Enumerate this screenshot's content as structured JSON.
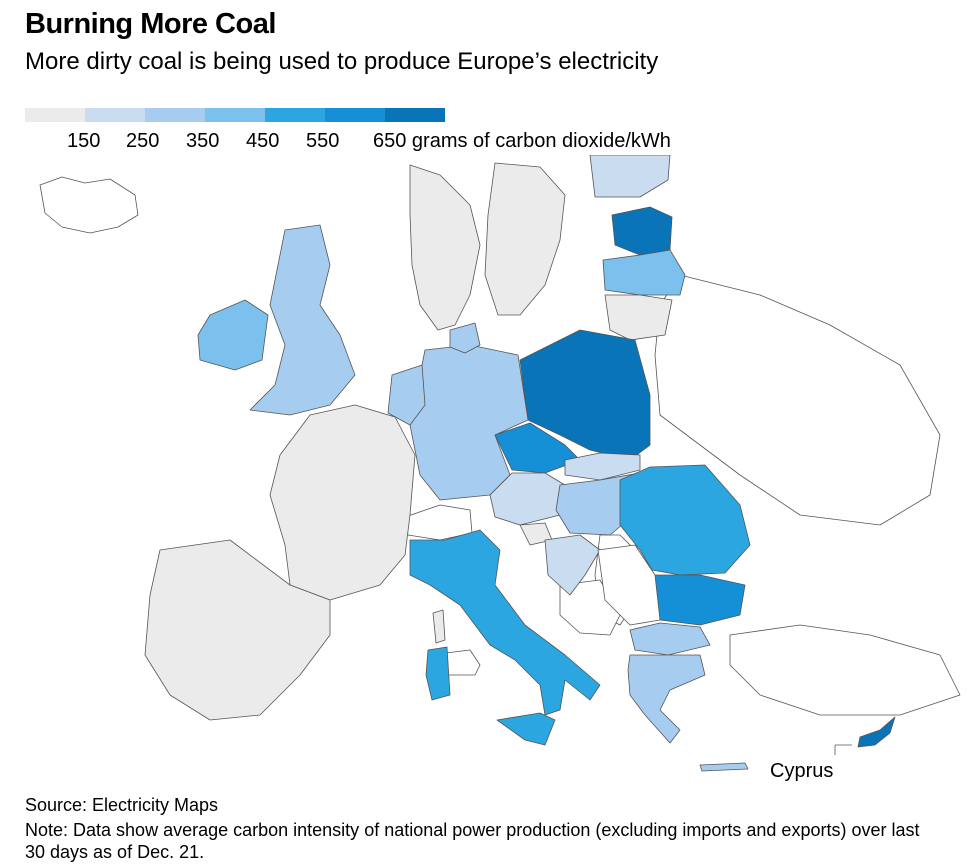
{
  "header": {
    "title": "Burning More Coal",
    "subtitle": "More dirty coal is being used to produce Europe’s electricity"
  },
  "legend": {
    "ticks": [
      "150",
      "250",
      "350",
      "450",
      "550",
      "650 grams of carbon dioxide/kWh"
    ],
    "colors": [
      "#ebebeb",
      "#c9dcf0",
      "#a6cdf0",
      "#7cc0ee",
      "#2ba6e0",
      "#1590d6",
      "#0a74b8"
    ]
  },
  "map": {
    "colors": {
      "very_low": "#ebebeb",
      "low": "#c9dcf0",
      "low_mid": "#a6cdf0",
      "mid": "#7cc0ee",
      "high": "#2ba6e0",
      "higher": "#1590d6",
      "highest": "#0a74b8",
      "no_data": "#ffffff"
    },
    "inset_label": "Cyprus"
  },
  "footer": {
    "source": "Source: Electricity Maps",
    "note": "Note: Data show average carbon intensity of national power production (excluding imports and exports) over last 30 days as of Dec. 21."
  }
}
